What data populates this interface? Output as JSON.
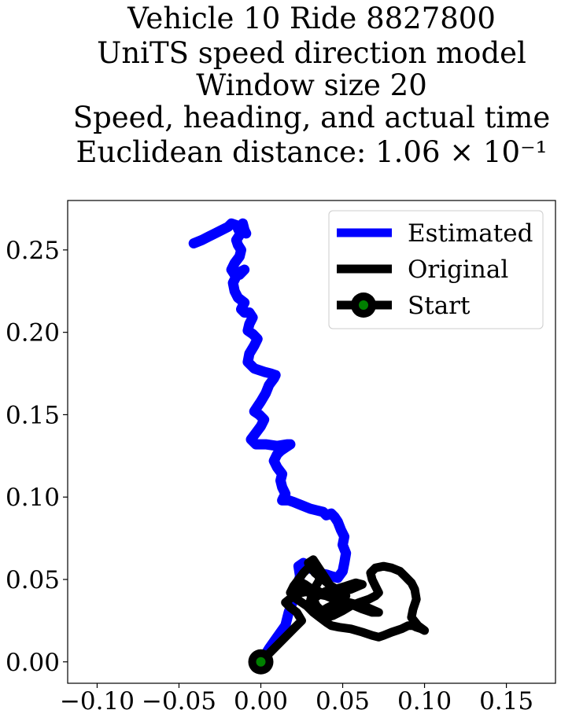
{
  "chart_data": {
    "type": "line",
    "title_lines": [
      "Vehicle 10 Ride 8827800",
      "UniTS speed direction model",
      "Window size 20",
      "Speed, heading, and actual time",
      "Euclidean distance: 1.06 × 10⁻¹"
    ],
    "xlabel": "",
    "ylabel": "",
    "xlim": [
      -0.118,
      0.18
    ],
    "ylim": [
      -0.013,
      0.28
    ],
    "xticks": [
      -0.1,
      -0.05,
      0.0,
      0.05,
      0.1,
      0.15
    ],
    "xtick_labels": [
      "−0.10",
      "−0.05",
      "0.00",
      "0.05",
      "0.10",
      "0.15"
    ],
    "yticks": [
      0.0,
      0.05,
      0.1,
      0.15,
      0.2,
      0.25
    ],
    "ytick_labels": [
      "0.00",
      "0.05",
      "0.10",
      "0.15",
      "0.20",
      "0.25"
    ],
    "grid": false,
    "legend_position": "upper right",
    "series": [
      {
        "name": "Estimated",
        "color": "#0000ff",
        "x": [
          0.0,
          0.005,
          0.01,
          0.015,
          0.017,
          0.02,
          0.022,
          0.024,
          0.023,
          0.026,
          0.03,
          0.035,
          0.04,
          0.043,
          0.047,
          0.05,
          0.051,
          0.052,
          0.05,
          0.051,
          0.049,
          0.047,
          0.045,
          0.043,
          0.04,
          0.038,
          0.034,
          0.03,
          0.025,
          0.02,
          0.017,
          0.013,
          0.015,
          0.013,
          0.012,
          0.013,
          0.01,
          0.008,
          0.01,
          0.012,
          0.015,
          0.018,
          0.016,
          0.01,
          0.003,
          -0.003,
          -0.006,
          -0.003,
          0.0,
          0.002,
          -0.001,
          -0.004,
          -0.002,
          0.0,
          0.003,
          0.005,
          0.008,
          0.009,
          0.006,
          0.002,
          -0.004,
          -0.008,
          -0.007,
          -0.004,
          -0.002,
          -0.005,
          -0.008,
          -0.007,
          -0.005,
          -0.007,
          -0.01,
          -0.012,
          -0.01,
          -0.014,
          -0.016,
          -0.017,
          -0.014,
          -0.01,
          -0.013,
          -0.016,
          -0.018,
          -0.016,
          -0.013,
          -0.012,
          -0.014,
          -0.015,
          -0.013,
          -0.012,
          -0.014,
          -0.013,
          -0.012,
          -0.011,
          -0.01,
          -0.009,
          -0.011,
          -0.015,
          -0.018,
          -0.02,
          -0.024,
          -0.028,
          -0.032,
          -0.036,
          -0.041
        ],
        "y": [
          0.0,
          0.008,
          0.015,
          0.022,
          0.03,
          0.038,
          0.045,
          0.052,
          0.058,
          0.06,
          0.057,
          0.054,
          0.053,
          0.052,
          0.051,
          0.055,
          0.06,
          0.066,
          0.071,
          0.076,
          0.08,
          0.085,
          0.088,
          0.09,
          0.089,
          0.091,
          0.092,
          0.093,
          0.095,
          0.097,
          0.098,
          0.098,
          0.102,
          0.106,
          0.11,
          0.114,
          0.118,
          0.122,
          0.126,
          0.128,
          0.13,
          0.132,
          0.132,
          0.131,
          0.132,
          0.132,
          0.135,
          0.139,
          0.143,
          0.147,
          0.15,
          0.152,
          0.155,
          0.158,
          0.163,
          0.168,
          0.172,
          0.174,
          0.175,
          0.176,
          0.178,
          0.182,
          0.187,
          0.192,
          0.196,
          0.199,
          0.201,
          0.205,
          0.209,
          0.212,
          0.212,
          0.214,
          0.218,
          0.221,
          0.225,
          0.23,
          0.236,
          0.238,
          0.235,
          0.235,
          0.238,
          0.242,
          0.246,
          0.25,
          0.253,
          0.256,
          0.259,
          0.262,
          0.263,
          0.261,
          0.263,
          0.266,
          0.262,
          0.26,
          0.262,
          0.265,
          0.266,
          0.264,
          0.262,
          0.26,
          0.258,
          0.256,
          0.254
        ]
      },
      {
        "name": "Original",
        "color": "#000000",
        "x": [
          0.0,
          0.008,
          0.015,
          0.02,
          0.025,
          0.022,
          0.018,
          0.015,
          0.02,
          0.025,
          0.03,
          0.035,
          0.04,
          0.045,
          0.05,
          0.055,
          0.062,
          0.068,
          0.072,
          0.065,
          0.058,
          0.05,
          0.045,
          0.04,
          0.035,
          0.03,
          0.027,
          0.025,
          0.02,
          0.018,
          0.022,
          0.028,
          0.032,
          0.036,
          0.04,
          0.043,
          0.048,
          0.055,
          0.062,
          0.068,
          0.072,
          0.075,
          0.08,
          0.086,
          0.09,
          0.093,
          0.095,
          0.098,
          0.1,
          0.096,
          0.092,
          0.093,
          0.095,
          0.094,
          0.092,
          0.088,
          0.085,
          0.08,
          0.075,
          0.07,
          0.067,
          0.068,
          0.07,
          0.072,
          0.07,
          0.066,
          0.06,
          0.055,
          0.05,
          0.044,
          0.04,
          0.036,
          0.032,
          0.03,
          0.031,
          0.033,
          0.036,
          0.034,
          0.03,
          0.026,
          0.023,
          0.02,
          0.024,
          0.03,
          0.035,
          0.04,
          0.044,
          0.048,
          0.05,
          0.046,
          0.042,
          0.038,
          0.034,
          0.032,
          0.036,
          0.04,
          0.045,
          0.052,
          0.058,
          0.062,
          0.055,
          0.048,
          0.043,
          0.04,
          0.036,
          0.032,
          0.029,
          0.033,
          0.038,
          0.043,
          0.048,
          0.052,
          0.047,
          0.041,
          0.036
        ],
        "y": [
          0.0,
          0.008,
          0.015,
          0.02,
          0.025,
          0.03,
          0.033,
          0.036,
          0.04,
          0.042,
          0.043,
          0.042,
          0.041,
          0.04,
          0.038,
          0.035,
          0.032,
          0.03,
          0.03,
          0.033,
          0.035,
          0.037,
          0.038,
          0.04,
          0.043,
          0.045,
          0.047,
          0.048,
          0.046,
          0.042,
          0.038,
          0.034,
          0.03,
          0.027,
          0.024,
          0.022,
          0.021,
          0.02,
          0.018,
          0.016,
          0.015,
          0.016,
          0.018,
          0.02,
          0.022,
          0.022,
          0.021,
          0.02,
          0.019,
          0.022,
          0.027,
          0.032,
          0.038,
          0.044,
          0.048,
          0.052,
          0.055,
          0.057,
          0.058,
          0.057,
          0.054,
          0.05,
          0.046,
          0.042,
          0.04,
          0.038,
          0.036,
          0.034,
          0.031,
          0.028,
          0.027,
          0.029,
          0.032,
          0.036,
          0.04,
          0.045,
          0.05,
          0.055,
          0.058,
          0.054,
          0.05,
          0.046,
          0.043,
          0.042,
          0.041,
          0.04,
          0.039,
          0.037,
          0.034,
          0.031,
          0.029,
          0.03,
          0.034,
          0.038,
          0.041,
          0.043,
          0.044,
          0.046,
          0.048,
          0.047,
          0.044,
          0.042,
          0.045,
          0.05,
          0.056,
          0.062,
          0.06,
          0.054,
          0.05,
          0.046,
          0.043,
          0.04,
          0.036,
          0.033,
          0.03
        ]
      },
      {
        "name": "Start",
        "color": "#000000",
        "marker_color": "#008000",
        "x": [
          0.0
        ],
        "y": [
          0.0
        ]
      }
    ]
  }
}
